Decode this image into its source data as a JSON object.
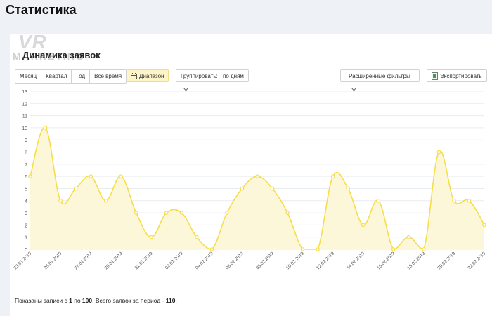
{
  "page": {
    "title": "Статистика"
  },
  "logo": {
    "line1": "VR",
    "line2": "MARKETING"
  },
  "section": {
    "title": "Динамика заявок"
  },
  "period_tabs": [
    "Месяц",
    "Квартал",
    "Год",
    "Все время"
  ],
  "toolbar": {
    "range_label": "Диапазон",
    "group_label": "Группировать:",
    "group_value": "по дням",
    "filters_label": "Расширенные фильтры",
    "export_label": "Экспортировать"
  },
  "colors": {
    "line": "#f5de4a",
    "fill": "#fdf7d9",
    "grid": "#e9ecef",
    "accent_bg": "#fdf4c8"
  },
  "chart_data": {
    "type": "area",
    "title": "",
    "xlabel": "",
    "ylabel": "",
    "ylim": [
      0,
      13
    ],
    "yticks": [
      0,
      1,
      2,
      3,
      4,
      5,
      6,
      7,
      8,
      9,
      10,
      11,
      12,
      13
    ],
    "grid": true,
    "x_tick_labels": [
      "23.01.2019",
      "25.01.2019",
      "27.01.2019",
      "29.01.2019",
      "31.01.2019",
      "02.02.2019",
      "04.02.2019",
      "06.02.2019",
      "08.02.2019",
      "10.02.2019",
      "12.02.2019",
      "14.02.2019",
      "16.02.2019",
      "18.02.2019",
      "20.02.2019",
      "22.02.2019"
    ],
    "series": [
      {
        "values": [
          6,
          10,
          4,
          5,
          6,
          4,
          6,
          3,
          1,
          3,
          3,
          1,
          0,
          3,
          5,
          6,
          5,
          3,
          0,
          0,
          6,
          5,
          2,
          4,
          0,
          1,
          0,
          8,
          4,
          4,
          2
        ]
      }
    ]
  },
  "footer": {
    "prefix": "Показаны записи с ",
    "from": "1",
    "middle": " по ",
    "to": "100",
    "suffix": ". Всего заявок за период - ",
    "total": "110",
    "end": "."
  }
}
